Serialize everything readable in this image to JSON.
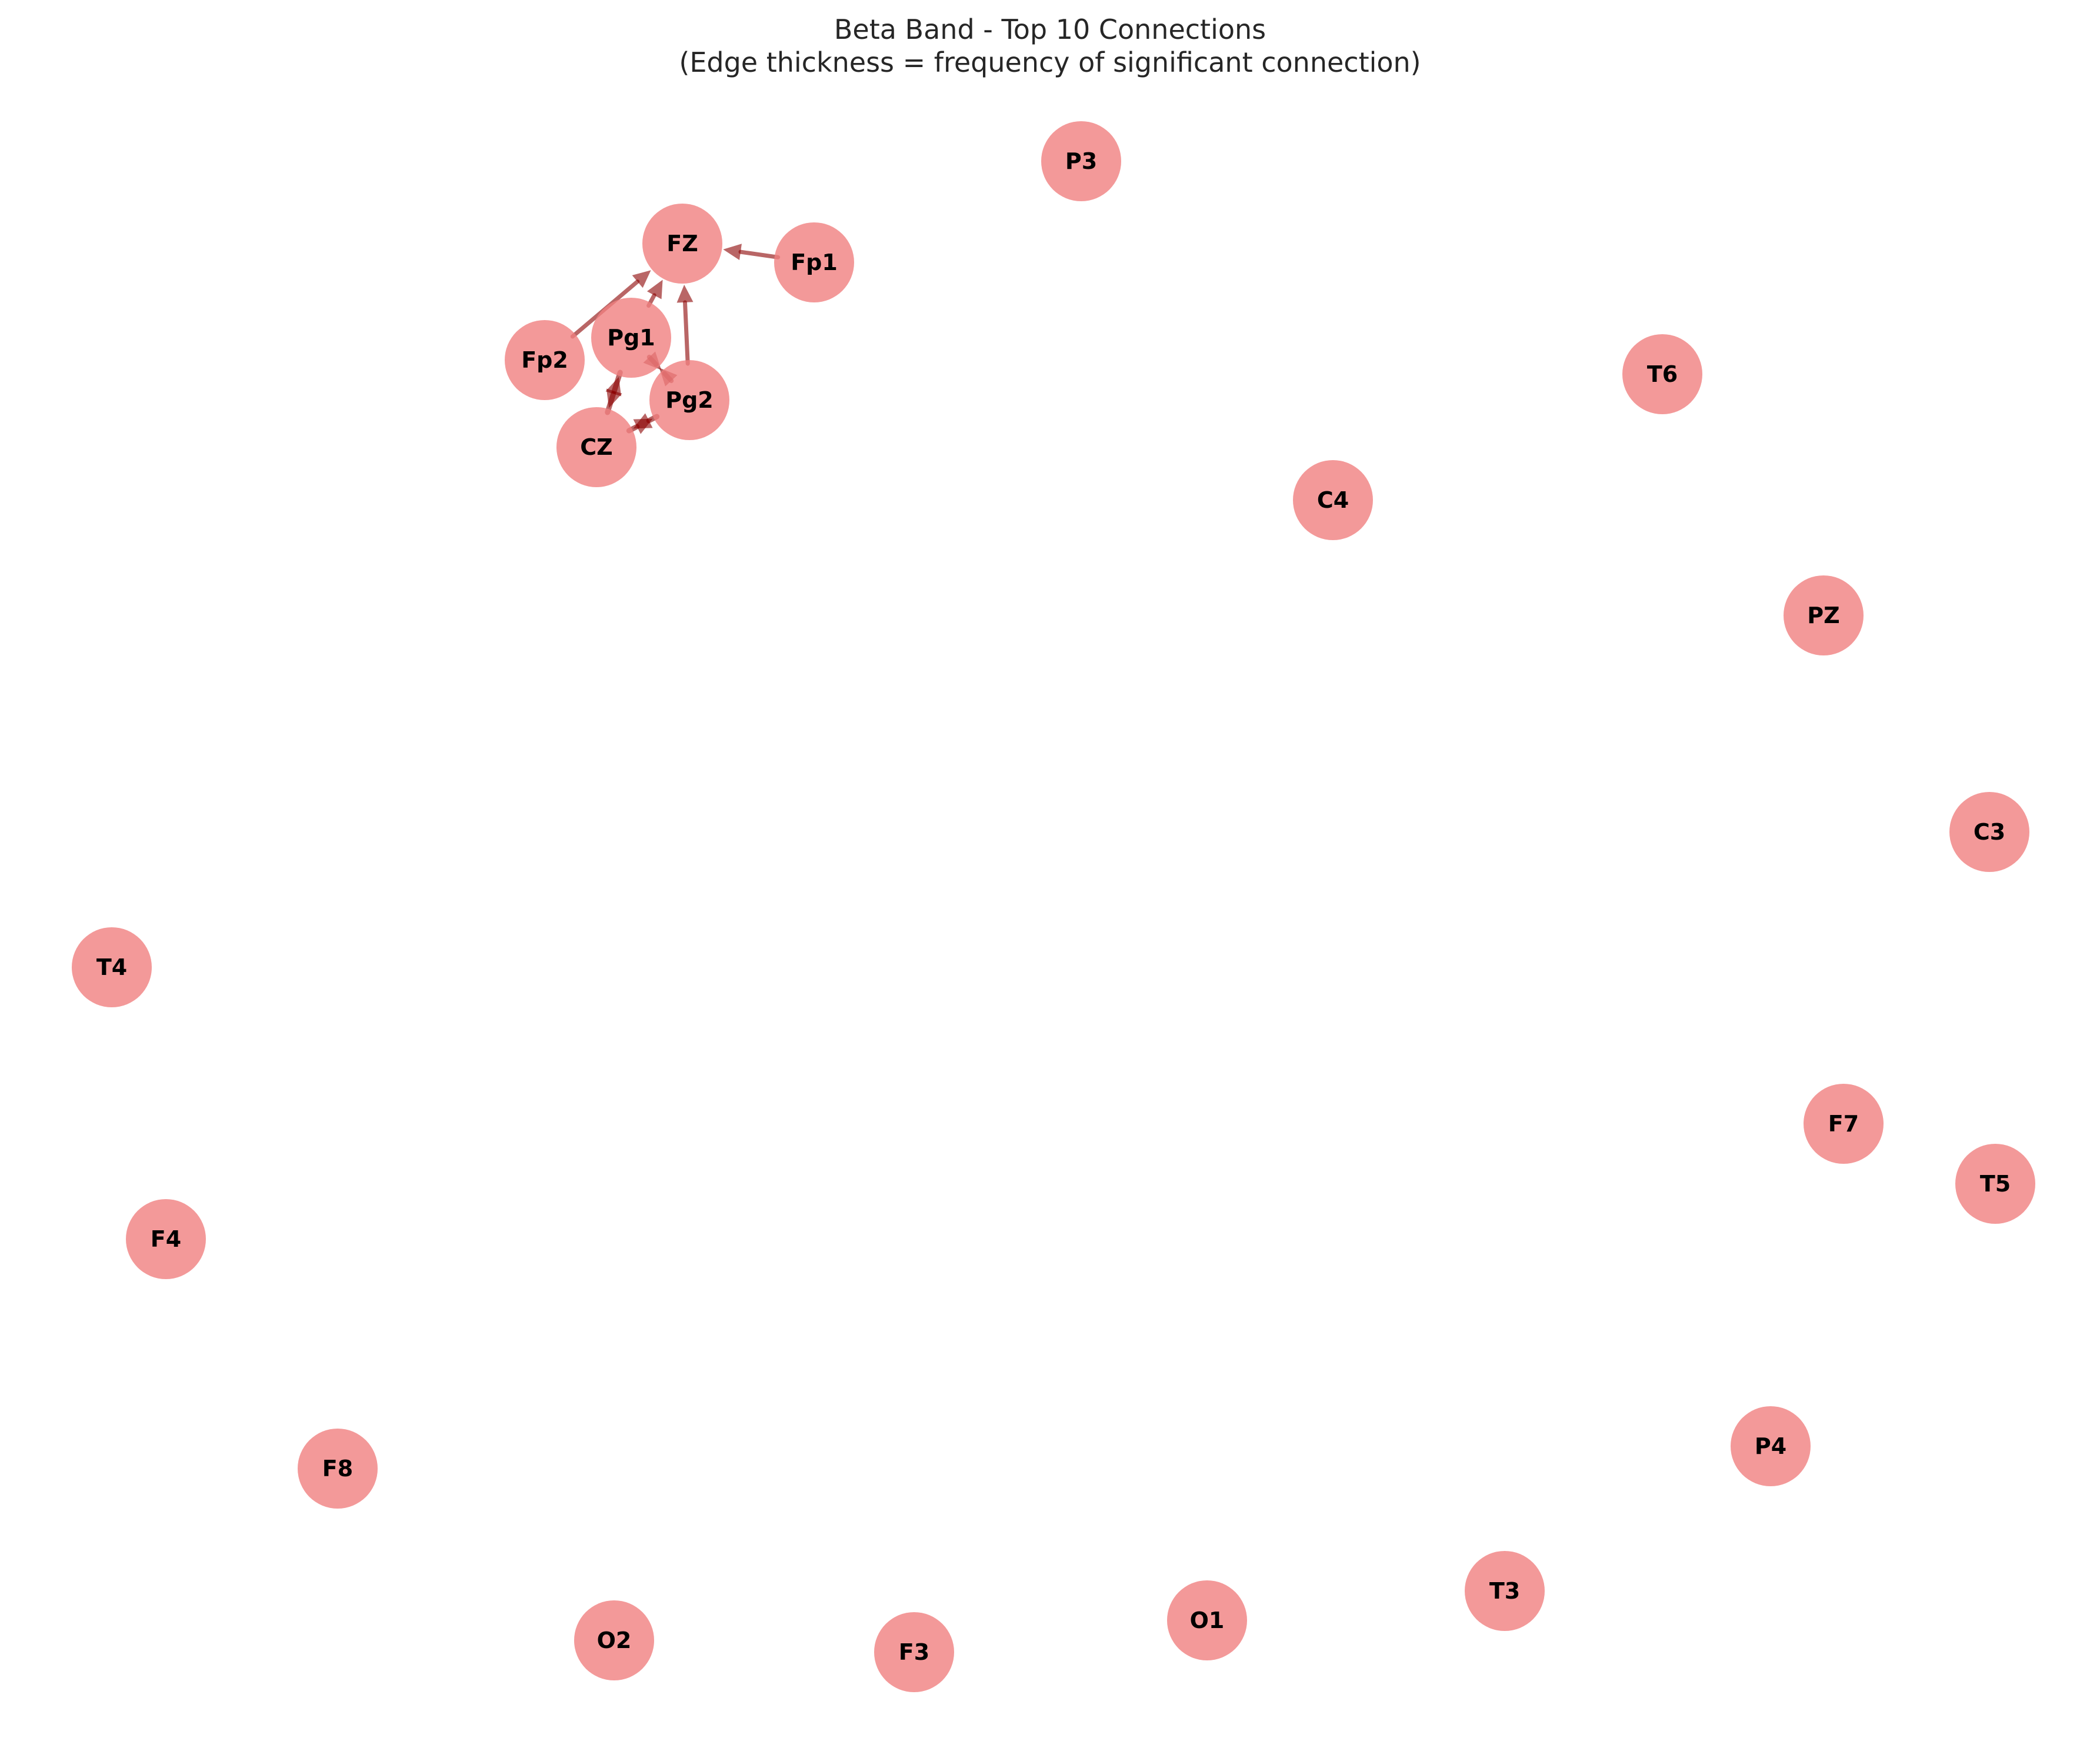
{
  "title": {
    "line1": "Beta Band - Top 10 Connections",
    "line2": "(Edge thickness = frequency of significant connection)"
  },
  "colors": {
    "node_fill": "#f08080",
    "edge": "#8b0000",
    "title_text": "#262626",
    "label_text": "#000000"
  },
  "nodes": [
    {
      "id": "P3"
    },
    {
      "id": "FZ"
    },
    {
      "id": "Fp1"
    },
    {
      "id": "Fp2"
    },
    {
      "id": "Pg1"
    },
    {
      "id": "Pg2"
    },
    {
      "id": "CZ"
    },
    {
      "id": "T6"
    },
    {
      "id": "C4"
    },
    {
      "id": "PZ"
    },
    {
      "id": "C3"
    },
    {
      "id": "T4"
    },
    {
      "id": "F7"
    },
    {
      "id": "T5"
    },
    {
      "id": "F4"
    },
    {
      "id": "F8"
    },
    {
      "id": "P4"
    },
    {
      "id": "T3"
    },
    {
      "id": "O1"
    },
    {
      "id": "O2"
    },
    {
      "id": "F3"
    }
  ],
  "edges": [
    {
      "source": "Fp1",
      "target": "FZ"
    },
    {
      "source": "Fp2",
      "target": "FZ"
    },
    {
      "source": "Pg1",
      "target": "FZ"
    },
    {
      "source": "Pg2",
      "target": "FZ"
    },
    {
      "source": "Pg2",
      "target": "Pg1"
    },
    {
      "source": "Pg1",
      "target": "Pg2"
    },
    {
      "source": "CZ",
      "target": "Pg1"
    },
    {
      "source": "Pg1",
      "target": "CZ"
    },
    {
      "source": "CZ",
      "target": "Pg2"
    },
    {
      "source": "Pg2",
      "target": "CZ"
    }
  ]
}
